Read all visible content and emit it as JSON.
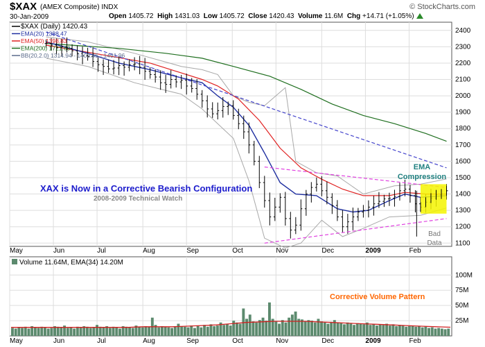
{
  "header": {
    "symbol": "$XAX",
    "description": "(AMEX Composite)  INDX",
    "date": "30-Jan-2009",
    "brand": "© StockCharts.com",
    "open_label": "Open",
    "open": "1405.72",
    "high_label": "High",
    "high": "1431.03",
    "low_label": "Low",
    "low": "1405.72",
    "close_label": "Close",
    "close": "1420.43",
    "volume_label": "Volume",
    "volume": "11.6M",
    "chg_label": "Chg",
    "chg": "+14.71 (+1.05%)"
  },
  "legend": {
    "price": "$XAX (Daily) 1420.43",
    "ema20": "EMA(20) 1388.47",
    "ema50": "EMA(50) 1398.83",
    "ema200": "EMA(200) 1721.60",
    "bb": "BB(20,2.0) 1314.94 - 1403.45 - 1491.96",
    "volume": "Volume 11.64M, EMA(34) 14.20M"
  },
  "annotations": {
    "title": "XAX is Now in a Corrective Bearish Configuration",
    "subtitle": "2008-2009 Technical Watch",
    "ema_line1": "EMA",
    "ema_line2": "Compression",
    "bad_line1": "Bad",
    "bad_line2": "Data",
    "volume_note": "Corrective Volume Pattern"
  },
  "colors": {
    "ema20": "#1f2fa0",
    "ema50": "#e02020",
    "ema200": "#1e6e1e",
    "bb": "#a8a8a8",
    "volume_bar": "#5c8a6e",
    "trend_blue": "#4444cc",
    "trend_magenta": "#e040e0",
    "highlight": "#f5f500",
    "title_text": "#1c1ccc",
    "ema_note": "#208080",
    "volume_note": "#ff6600"
  },
  "chart_data": [
    {
      "type": "line",
      "x_ticks": [
        "May",
        "Jun",
        "Jul",
        "Aug",
        "Sep",
        "Oct",
        "Nov",
        "Dec",
        "2009",
        "Feb"
      ],
      "y_ticks": [
        1100,
        1200,
        1300,
        1400,
        1500,
        1600,
        1700,
        1800,
        1900,
        2000,
        2100,
        2200,
        2300,
        2400
      ],
      "ylim": [
        1080,
        2450
      ],
      "grid": true,
      "legend_position": "top-left",
      "series": [
        {
          "name": "$XAX (Daily) 1420.43",
          "points": [
            [
              28,
              2320
            ],
            [
              32,
              2310
            ],
            [
              36,
              2295
            ],
            [
              40,
              2300
            ],
            [
              44,
              2290
            ],
            [
              48,
              2275
            ],
            [
              52,
              2260
            ],
            [
              56,
              2245
            ],
            [
              60,
              2240
            ],
            [
              64,
              2210
            ],
            [
              68,
              2190
            ],
            [
              72,
              2180
            ],
            [
              76,
              2165
            ],
            [
              80,
              2170
            ],
            [
              84,
              2185
            ],
            [
              88,
              2175
            ],
            [
              92,
              2190
            ],
            [
              96,
              2195
            ],
            [
              100,
              2175
            ],
            [
              104,
              2150
            ],
            [
              108,
              2130
            ],
            [
              112,
              2115
            ],
            [
              116,
              2080
            ],
            [
              120,
              2070
            ],
            [
              124,
              2100
            ],
            [
              128,
              2085
            ],
            [
              132,
              2095
            ],
            [
              136,
              2060
            ],
            [
              140,
              2045
            ],
            [
              144,
              2010
            ],
            [
              148,
              1970
            ],
            [
              152,
              1920
            ],
            [
              156,
              1890
            ],
            [
              160,
              1910
            ],
            [
              164,
              1935
            ],
            [
              168,
              1940
            ],
            [
              172,
              1880
            ],
            [
              176,
              1830
            ],
            [
              180,
              1780
            ],
            [
              184,
              1700
            ],
            [
              188,
              1600
            ],
            [
              192,
              1470
            ],
            [
              196,
              1360
            ],
            [
              200,
              1260
            ],
            [
              204,
              1320
            ],
            [
              208,
              1380
            ],
            [
              212,
              1250
            ],
            [
              216,
              1180
            ],
            [
              220,
              1210
            ],
            [
              224,
              1310
            ],
            [
              228,
              1400
            ],
            [
              232,
              1440
            ],
            [
              236,
              1460
            ],
            [
              240,
              1420
            ],
            [
              244,
              1380
            ],
            [
              248,
              1330
            ],
            [
              252,
              1260
            ],
            [
              256,
              1200
            ],
            [
              260,
              1230
            ],
            [
              264,
              1260
            ],
            [
              268,
              1290
            ],
            [
              272,
              1300
            ],
            [
              276,
              1320
            ],
            [
              280,
              1340
            ],
            [
              284,
              1355
            ],
            [
              288,
              1370
            ],
            [
              292,
              1375
            ],
            [
              296,
              1385
            ],
            [
              300,
              1420
            ],
            [
              304,
              1430
            ],
            [
              308,
              1390
            ],
            [
              312,
              1340
            ],
            [
              316,
              1320
            ],
            [
              320,
              1350
            ],
            [
              324,
              1375
            ],
            [
              328,
              1395
            ],
            [
              332,
              1400
            ],
            [
              336,
              1420
            ]
          ]
        },
        {
          "name": "EMA(20) 1388.47",
          "points": [
            [
              28,
              2330
            ],
            [
              60,
              2260
            ],
            [
              84,
              2200
            ],
            [
              108,
              2160
            ],
            [
              132,
              2110
            ],
            [
              148,
              2080
            ],
            [
              160,
              2000
            ],
            [
              172,
              1930
            ],
            [
              184,
              1820
            ],
            [
              196,
              1650
            ],
            [
              208,
              1470
            ],
            [
              220,
              1400
            ],
            [
              236,
              1390
            ],
            [
              252,
              1310
            ],
            [
              264,
              1290
            ],
            [
              276,
              1300
            ],
            [
              292,
              1360
            ],
            [
              304,
              1400
            ],
            [
              316,
              1380
            ],
            [
              336,
              1390
            ]
          ]
        },
        {
          "name": "EMA(50) 1398.83",
          "points": [
            [
              28,
              2310
            ],
            [
              72,
              2250
            ],
            [
              108,
              2200
            ],
            [
              132,
              2140
            ],
            [
              148,
              2100
            ],
            [
              160,
              2060
            ],
            [
              176,
              1980
            ],
            [
              192,
              1850
            ],
            [
              208,
              1680
            ],
            [
              224,
              1560
            ],
            [
              240,
              1490
            ],
            [
              256,
              1430
            ],
            [
              272,
              1390
            ],
            [
              292,
              1390
            ],
            [
              304,
              1410
            ],
            [
              320,
              1400
            ],
            [
              336,
              1400
            ]
          ]
        },
        {
          "name": "EMA(200) 1721.60",
          "points": [
            [
              28,
              2320
            ],
            [
              84,
              2290
            ],
            [
              120,
              2260
            ],
            [
              148,
              2230
            ],
            [
              172,
              2180
            ],
            [
              200,
              2120
            ],
            [
              224,
              2040
            ],
            [
              248,
              1950
            ],
            [
              272,
              1880
            ],
            [
              296,
              1830
            ],
            [
              320,
              1770
            ],
            [
              336,
              1722
            ]
          ]
        },
        {
          "name": "BB(20,2.0) 1314.94 - 1403.45 - 1491.96",
          "points": [
            [
              28,
              2360
            ],
            [
              60,
              2330
            ],
            [
              96,
              2260
            ],
            [
              132,
              2180
            ],
            [
              148,
              2160
            ],
            [
              160,
              2130
            ],
            [
              172,
              2000
            ],
            [
              184,
              1960
            ],
            [
              196,
              1940
            ],
            [
              212,
              2050
            ],
            [
              220,
              1600
            ],
            [
              236,
              1530
            ],
            [
              252,
              1510
            ],
            [
              272,
              1400
            ],
            [
              296,
              1450
            ],
            [
              316,
              1460
            ],
            [
              336,
              1492
            ]
          ]
        },
        {
          "name": "BB lower",
          "points": [
            [
              28,
              2230
            ],
            [
              60,
              2180
            ],
            [
              96,
              2080
            ],
            [
              132,
              2010
            ],
            [
              148,
              1920
            ],
            [
              160,
              1830
            ],
            [
              172,
              1740
            ],
            [
              184,
              1480
            ],
            [
              196,
              1130
            ],
            [
              212,
              1070
            ],
            [
              224,
              1100
            ],
            [
              240,
              1240
            ],
            [
              256,
              1140
            ],
            [
              272,
              1190
            ],
            [
              292,
              1260
            ],
            [
              316,
              1270
            ],
            [
              336,
              1315
            ]
          ]
        }
      ]
    },
    {
      "type": "bar",
      "y_ticks": [
        "25M",
        "50M",
        "75M",
        "100M"
      ],
      "ylim": [
        0,
        130
      ],
      "grid": true,
      "series": [
        {
          "name": "Volume 11.64M",
          "values": [
            13,
            12,
            14,
            13,
            15,
            12,
            16,
            14,
            13,
            15,
            14,
            12,
            13,
            16,
            15,
            14,
            17,
            13,
            14,
            12,
            15,
            14,
            16,
            15,
            13,
            14,
            18,
            15,
            14,
            16,
            13,
            15,
            14,
            12,
            16,
            15,
            14,
            13,
            17,
            15,
            14,
            16,
            15,
            30,
            18,
            14,
            16,
            15,
            14,
            13,
            15,
            20,
            16,
            15,
            14,
            17,
            13,
            16,
            14,
            18,
            15,
            19,
            16,
            17,
            22,
            18,
            20,
            17,
            25,
            22,
            20,
            45,
            28,
            35,
            24,
            22,
            26,
            30,
            25,
            55,
            28,
            24,
            20,
            26,
            22,
            30,
            35,
            40,
            28,
            27,
            24,
            26,
            25,
            22,
            28,
            24,
            22,
            20,
            23,
            26,
            22,
            21,
            19,
            22,
            20,
            18,
            21,
            20,
            19,
            22,
            18,
            20,
            17,
            19,
            18,
            20,
            17,
            19,
            16,
            18,
            17,
            15,
            16,
            17,
            15,
            16,
            14,
            15,
            13,
            14,
            12,
            13,
            12,
            11,
            12
          ]
        },
        {
          "name": "EMA(34) 14.20M",
          "values": [
            14,
            14,
            14,
            14,
            14,
            14,
            14,
            14,
            14,
            15,
            15,
            15,
            16,
            17,
            18,
            20,
            22,
            23,
            24,
            24,
            24,
            23,
            22,
            21,
            20,
            19,
            18,
            17,
            16,
            15,
            14.2
          ]
        }
      ]
    }
  ]
}
